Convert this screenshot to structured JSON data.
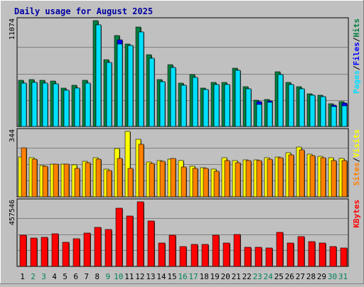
{
  "chart_data": {
    "type": "bar",
    "title": "Daily usage for August 2025",
    "categories": [
      "1",
      "2",
      "3",
      "4",
      "5",
      "6",
      "7",
      "8",
      "9",
      "10",
      "11",
      "12",
      "13",
      "14",
      "15",
      "16",
      "17",
      "18",
      "19",
      "20",
      "21",
      "22",
      "23",
      "24",
      "25",
      "26",
      "27",
      "28",
      "29",
      "30",
      "31"
    ],
    "weekend_days": [
      "2",
      "3",
      "9",
      "10",
      "16",
      "17",
      "23",
      "24",
      "30",
      "31"
    ],
    "panels": [
      {
        "name": "hits-files-pages",
        "y_max_label": "11074",
        "ylim": [
          0,
          11074
        ],
        "legend": [
          {
            "text": "Pages",
            "color": "#00e0ff"
          },
          {
            "text": "/",
            "color": "#000000"
          },
          {
            "text": "Files",
            "color": "#0000ff"
          },
          {
            "text": "/",
            "color": "#000000"
          },
          {
            "text": "Hits",
            "color": "#008040"
          }
        ],
        "series": [
          {
            "name": "Hits",
            "color": "#008040",
            "values": [
              4800,
              4900,
              4850,
              4750,
              4050,
              4300,
              4800,
              11074,
              7000,
              9500,
              8600,
              10400,
              7500,
              4900,
              6500,
              4500,
              5400,
              4050,
              4600,
              4600,
              6100,
              4150,
              2750,
              2800,
              5700,
              4600,
              4150,
              3450,
              3250,
              2400,
              2600
            ]
          },
          {
            "name": "Files",
            "color": "#0000ff",
            "values": [
              4500,
              4600,
              4550,
              4450,
              3800,
              4050,
              4500,
              10600,
              6700,
              9100,
              8500,
              9900,
              7100,
              4650,
              6200,
              4300,
              5150,
              3850,
              4350,
              4350,
              5850,
              3950,
              2600,
              2650,
              5450,
              4400,
              3950,
              3300,
              3100,
              2250,
              2450
            ]
          },
          {
            "name": "Pages",
            "color": "#00e0ff",
            "values": [
              4500,
              4600,
              4550,
              4450,
              3800,
              4050,
              4500,
              10600,
              6700,
              8600,
              8500,
              9900,
              7100,
              4650,
              6200,
              4300,
              5150,
              3850,
              4350,
              4350,
              5850,
              3950,
              2300,
              2500,
              5450,
              4400,
              3950,
              3300,
              3100,
              2050,
              2150
            ]
          }
        ]
      },
      {
        "name": "visits-sites",
        "y_max_label": "344",
        "ylim": [
          0,
          344
        ],
        "legend": [
          {
            "text": "Sites",
            "color": "#ff8000"
          },
          {
            "text": "/",
            "color": "#000000"
          },
          {
            "text": "Visits",
            "color": "#ffff00"
          }
        ],
        "series": [
          {
            "name": "Visits",
            "color": "#ffff00",
            "values": [
              210,
              205,
              163,
              172,
              172,
              168,
              187,
              206,
              146,
              253,
              344,
              304,
              184,
              191,
              199,
              190,
              160,
              152,
              144,
              204,
              189,
              193,
              193,
              205,
              210,
              233,
              262,
              224,
              212,
              205,
              203
            ]
          },
          {
            "name": "Sites",
            "color": "#ff8000",
            "values": [
              258,
              200,
              160,
              172,
              172,
              150,
              180,
              200,
              140,
              202,
              150,
              275,
              174,
              188,
              202,
              158,
              150,
              150,
              136,
              192,
              180,
              191,
              192,
              200,
              205,
              222,
              247,
              215,
              205,
              190,
              191
            ]
          }
        ]
      },
      {
        "name": "kbytes",
        "y_max_label": "457546",
        "ylim": [
          0,
          457546
        ],
        "legend": [
          {
            "text": "KBytes",
            "color": "#ff0000"
          }
        ],
        "series": [
          {
            "name": "KBytes",
            "color": "#ff0000",
            "values": [
              220000,
              200000,
              208000,
              230000,
              170000,
              195000,
              238000,
              278000,
              260000,
              410000,
              355000,
              457546,
              320000,
              165000,
              220000,
              140000,
              158000,
              158000,
              220000,
              167000,
              225000,
              138000,
              138000,
              132000,
              243000,
              167000,
              213000,
              175000,
              168000,
              140000,
              131000
            ]
          }
        ]
      }
    ]
  }
}
